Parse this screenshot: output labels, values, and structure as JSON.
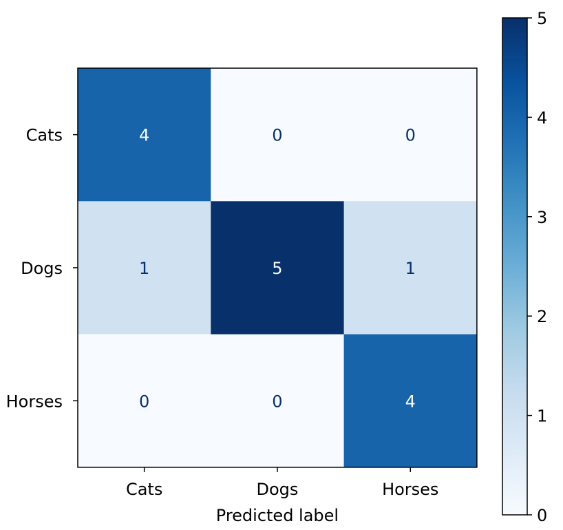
{
  "chart_data": {
    "type": "heatmap",
    "x_categories": [
      "Cats",
      "Dogs",
      "Horses"
    ],
    "y_categories": [
      "Cats",
      "Dogs",
      "Horses"
    ],
    "matrix": [
      [
        4,
        0,
        0
      ],
      [
        1,
        5,
        1
      ],
      [
        0,
        0,
        4
      ]
    ],
    "xlabel": "Predicted label",
    "ylabel": "",
    "colorbar": {
      "min": 0,
      "max": 5,
      "ticks": [
        0,
        1,
        2,
        3,
        4,
        5
      ]
    },
    "colormap": "Blues",
    "colormap_stops": [
      "#f7fbff",
      "#deebf7",
      "#c6dbef",
      "#9ecae1",
      "#6baed6",
      "#4292c6",
      "#2171b5",
      "#08519c",
      "#08306b"
    ],
    "text_colors": {
      "light_cell": "#08306b",
      "dark_cell": "#f7fbff"
    }
  }
}
